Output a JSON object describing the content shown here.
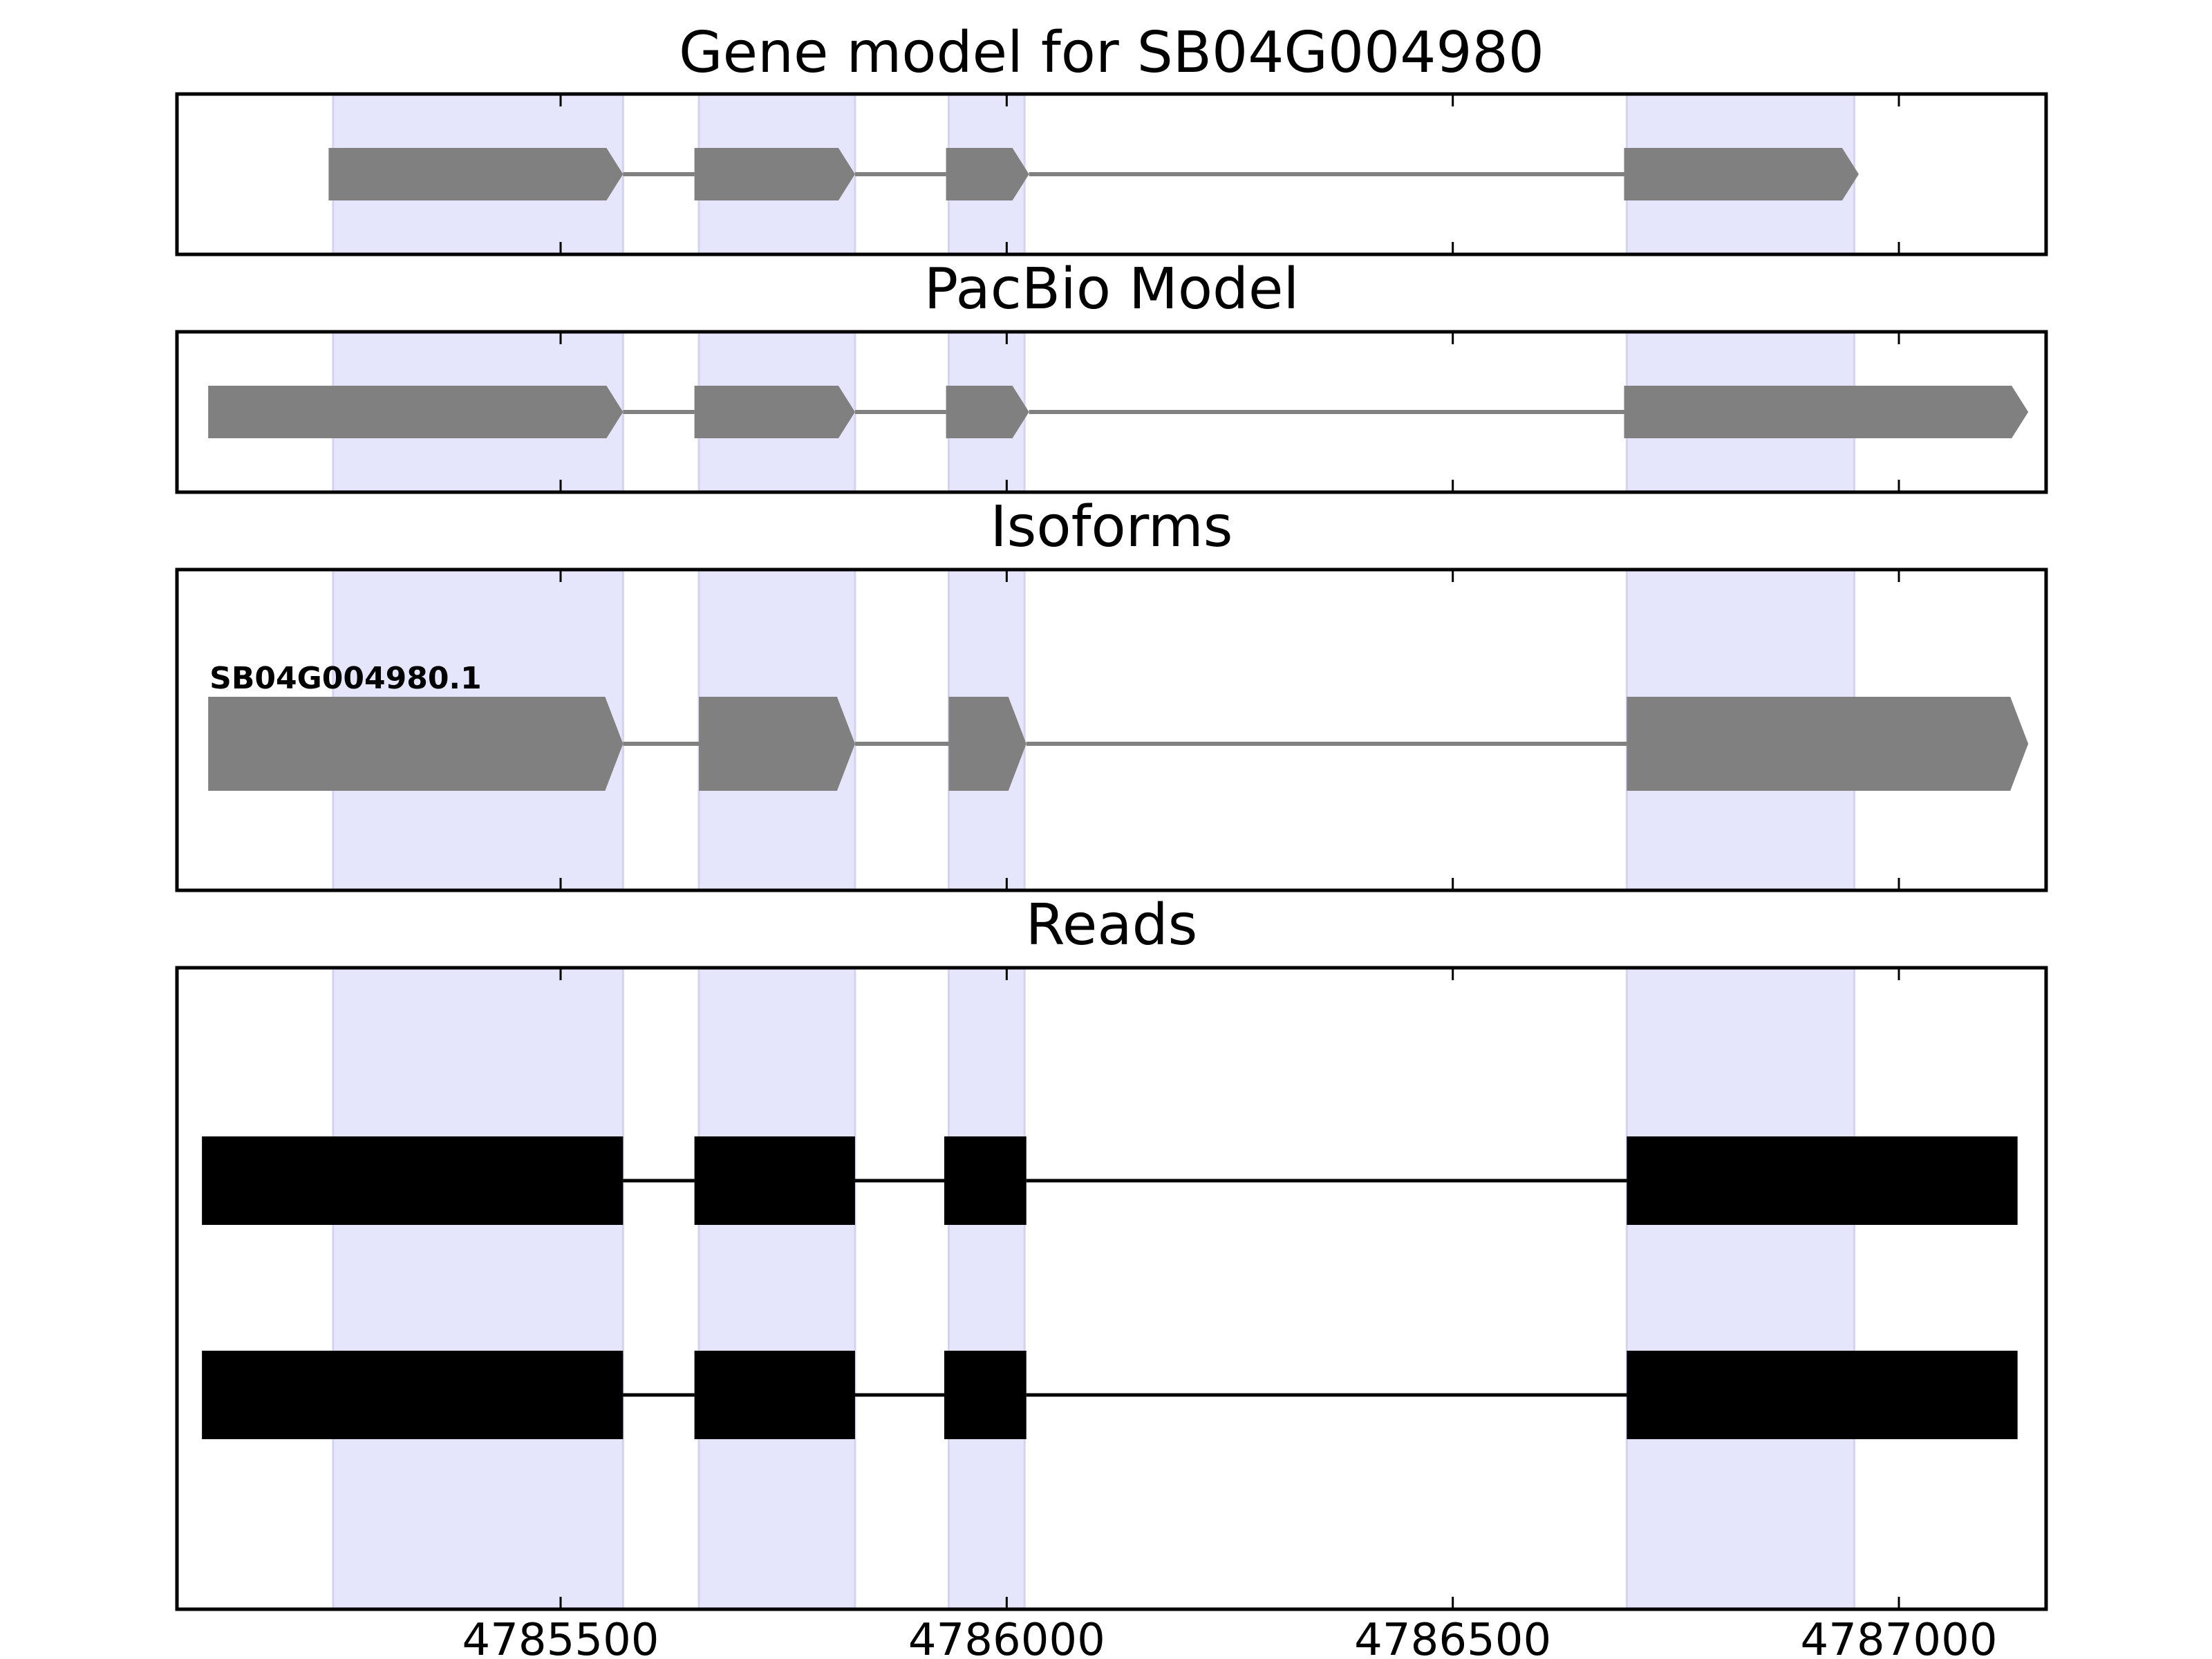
{
  "chart_data": {
    "type": "gene-structure",
    "xlim": [
      4785070,
      4787165
    ],
    "xticks": [
      4785500,
      4786000,
      4786500,
      4787000
    ],
    "xtick_labels": [
      "4785500",
      "4786000",
      "4786500",
      "4787000"
    ],
    "colors": {
      "highlight": "#e5e5fc",
      "highlight_edge": "#d4d4f0",
      "model_exon": "#808080",
      "read_exon": "#000000",
      "axes": "#000000"
    },
    "highlight_regions": [
      [
        4785245,
        4785570
      ],
      [
        4785655,
        4785830
      ],
      [
        4785935,
        4786020
      ],
      [
        4786695,
        4786950
      ]
    ],
    "panels": [
      {
        "title": "Gene model for SB04G004980",
        "kind": "model",
        "tracks": [
          {
            "exons": [
              [
                4785240,
                4785570
              ],
              [
                4785650,
                4785830
              ],
              [
                4785932,
                4786025
              ],
              [
                4786692,
                4786955
              ]
            ]
          }
        ]
      },
      {
        "title": "PacBio Model",
        "kind": "model",
        "tracks": [
          {
            "exons": [
              [
                4785105,
                4785570
              ],
              [
                4785650,
                4785830
              ],
              [
                4785932,
                4786025
              ],
              [
                4786692,
                4787145
              ]
            ]
          }
        ]
      },
      {
        "title": "Isoforms",
        "kind": "isoform",
        "tracks": [
          {
            "label": "SB04G004980.1",
            "exons": [
              [
                4785105,
                4785570
              ],
              [
                4785655,
                4785830
              ],
              [
                4785935,
                4786022
              ],
              [
                4786695,
                4787145
              ]
            ]
          }
        ]
      },
      {
        "title": "Reads",
        "kind": "reads",
        "tracks": [
          {
            "exons": [
              [
                4785098,
                4785570
              ],
              [
                4785650,
                4785830
              ],
              [
                4785930,
                4786022
              ],
              [
                4786695,
                4787133
              ]
            ]
          },
          {
            "exons": [
              [
                4785098,
                4785570
              ],
              [
                4785650,
                4785830
              ],
              [
                4785930,
                4786022
              ],
              [
                4786695,
                4787133
              ]
            ]
          }
        ]
      }
    ]
  }
}
